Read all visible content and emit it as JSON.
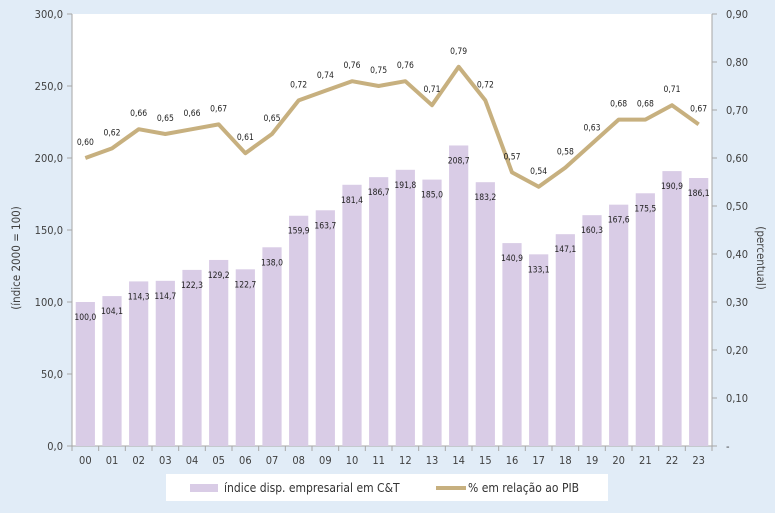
{
  "chart_data": {
    "type": "bar+line",
    "categories": [
      "00",
      "01",
      "02",
      "03",
      "04",
      "05",
      "06",
      "07",
      "08",
      "09",
      "10",
      "11",
      "12",
      "13",
      "14",
      "15",
      "16",
      "17",
      "18",
      "19",
      "20",
      "21",
      "22",
      "23"
    ],
    "series": [
      {
        "name": "índice disp. empresarial em C&T",
        "type": "bar",
        "axis": "left",
        "values": [
          100.0,
          104.1,
          114.3,
          114.7,
          122.3,
          129.2,
          122.7,
          138.0,
          159.9,
          163.7,
          181.4,
          186.7,
          191.8,
          185.0,
          208.7,
          183.2,
          140.9,
          133.1,
          147.1,
          160.3,
          167.6,
          175.5,
          190.9,
          186.1
        ],
        "labels": [
          "100,0",
          "104,1",
          "114,3",
          "114,7",
          "122,3",
          "129,2",
          "122,7",
          "138,0",
          "159,9",
          "163,7",
          "181,4",
          "186,7",
          "191,8",
          "185,0",
          "208,7",
          "183,2",
          "140,9",
          "133,1",
          "147,1",
          "160,3",
          "167,6",
          "175,5",
          "190,9",
          "186,1"
        ]
      },
      {
        "name": "% em relação ao PIB",
        "type": "line",
        "axis": "right",
        "values": [
          0.6,
          0.62,
          0.66,
          0.65,
          0.66,
          0.67,
          0.61,
          0.65,
          0.72,
          0.74,
          0.76,
          0.75,
          0.76,
          0.71,
          0.79,
          0.72,
          0.57,
          0.54,
          0.58,
          0.63,
          0.68,
          0.68,
          0.71,
          0.67
        ],
        "labels": [
          "0,60",
          "0,62",
          "0,66",
          "0,65",
          "0,66",
          "0,67",
          "0,61",
          "0,65",
          "0,72",
          "0,74",
          "0,76",
          "0,75",
          "0,76",
          "0,71",
          "0,79",
          "0,72",
          "0,57",
          "0,54",
          "0,58",
          "0,63",
          "0,68",
          "0,68",
          "0,71",
          "0,67"
        ]
      }
    ],
    "ylabel": "(índice 2000 = 100)",
    "y2label": "(percentual)",
    "ylim": [
      0,
      300
    ],
    "y2lim": [
      0,
      0.9
    ],
    "yticks": [
      "0,0",
      "50,0",
      "100,0",
      "150,0",
      "200,0",
      "250,0",
      "300,0"
    ],
    "y2ticks": [
      "-",
      "0,10",
      "0,20",
      "0,30",
      "0,40",
      "0,50",
      "0,60",
      "0,70",
      "0,80",
      "0,90"
    ],
    "legend_position": "bottom",
    "colors": {
      "bar": "#d9cce6",
      "line": "#c7b07f",
      "background": "#e1ecf7",
      "plot": "#ffffff",
      "axis": "#a6a6a6"
    }
  }
}
